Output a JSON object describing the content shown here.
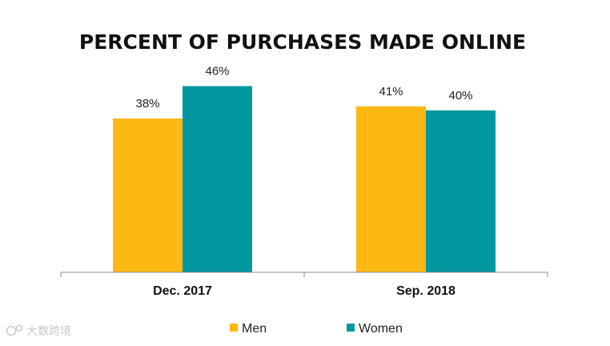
{
  "chart_data": {
    "type": "bar",
    "title": "PERCENT OF PURCHASES MADE ONLINE",
    "categories": [
      "Dec. 2017",
      "Sep. 2018"
    ],
    "series": [
      {
        "name": "Men",
        "values": [
          38,
          41
        ],
        "labels": [
          "38%",
          "41%"
        ],
        "color": "#FDB813"
      },
      {
        "name": "Women",
        "values": [
          46,
          40
        ],
        "labels": [
          "46%",
          "40%"
        ],
        "color": "#0097A0"
      }
    ],
    "ylim": [
      0,
      55
    ],
    "grid": false,
    "legend": "bottom",
    "xlabel": "",
    "ylabel": ""
  },
  "watermark": {
    "text": "大数跨境"
  }
}
